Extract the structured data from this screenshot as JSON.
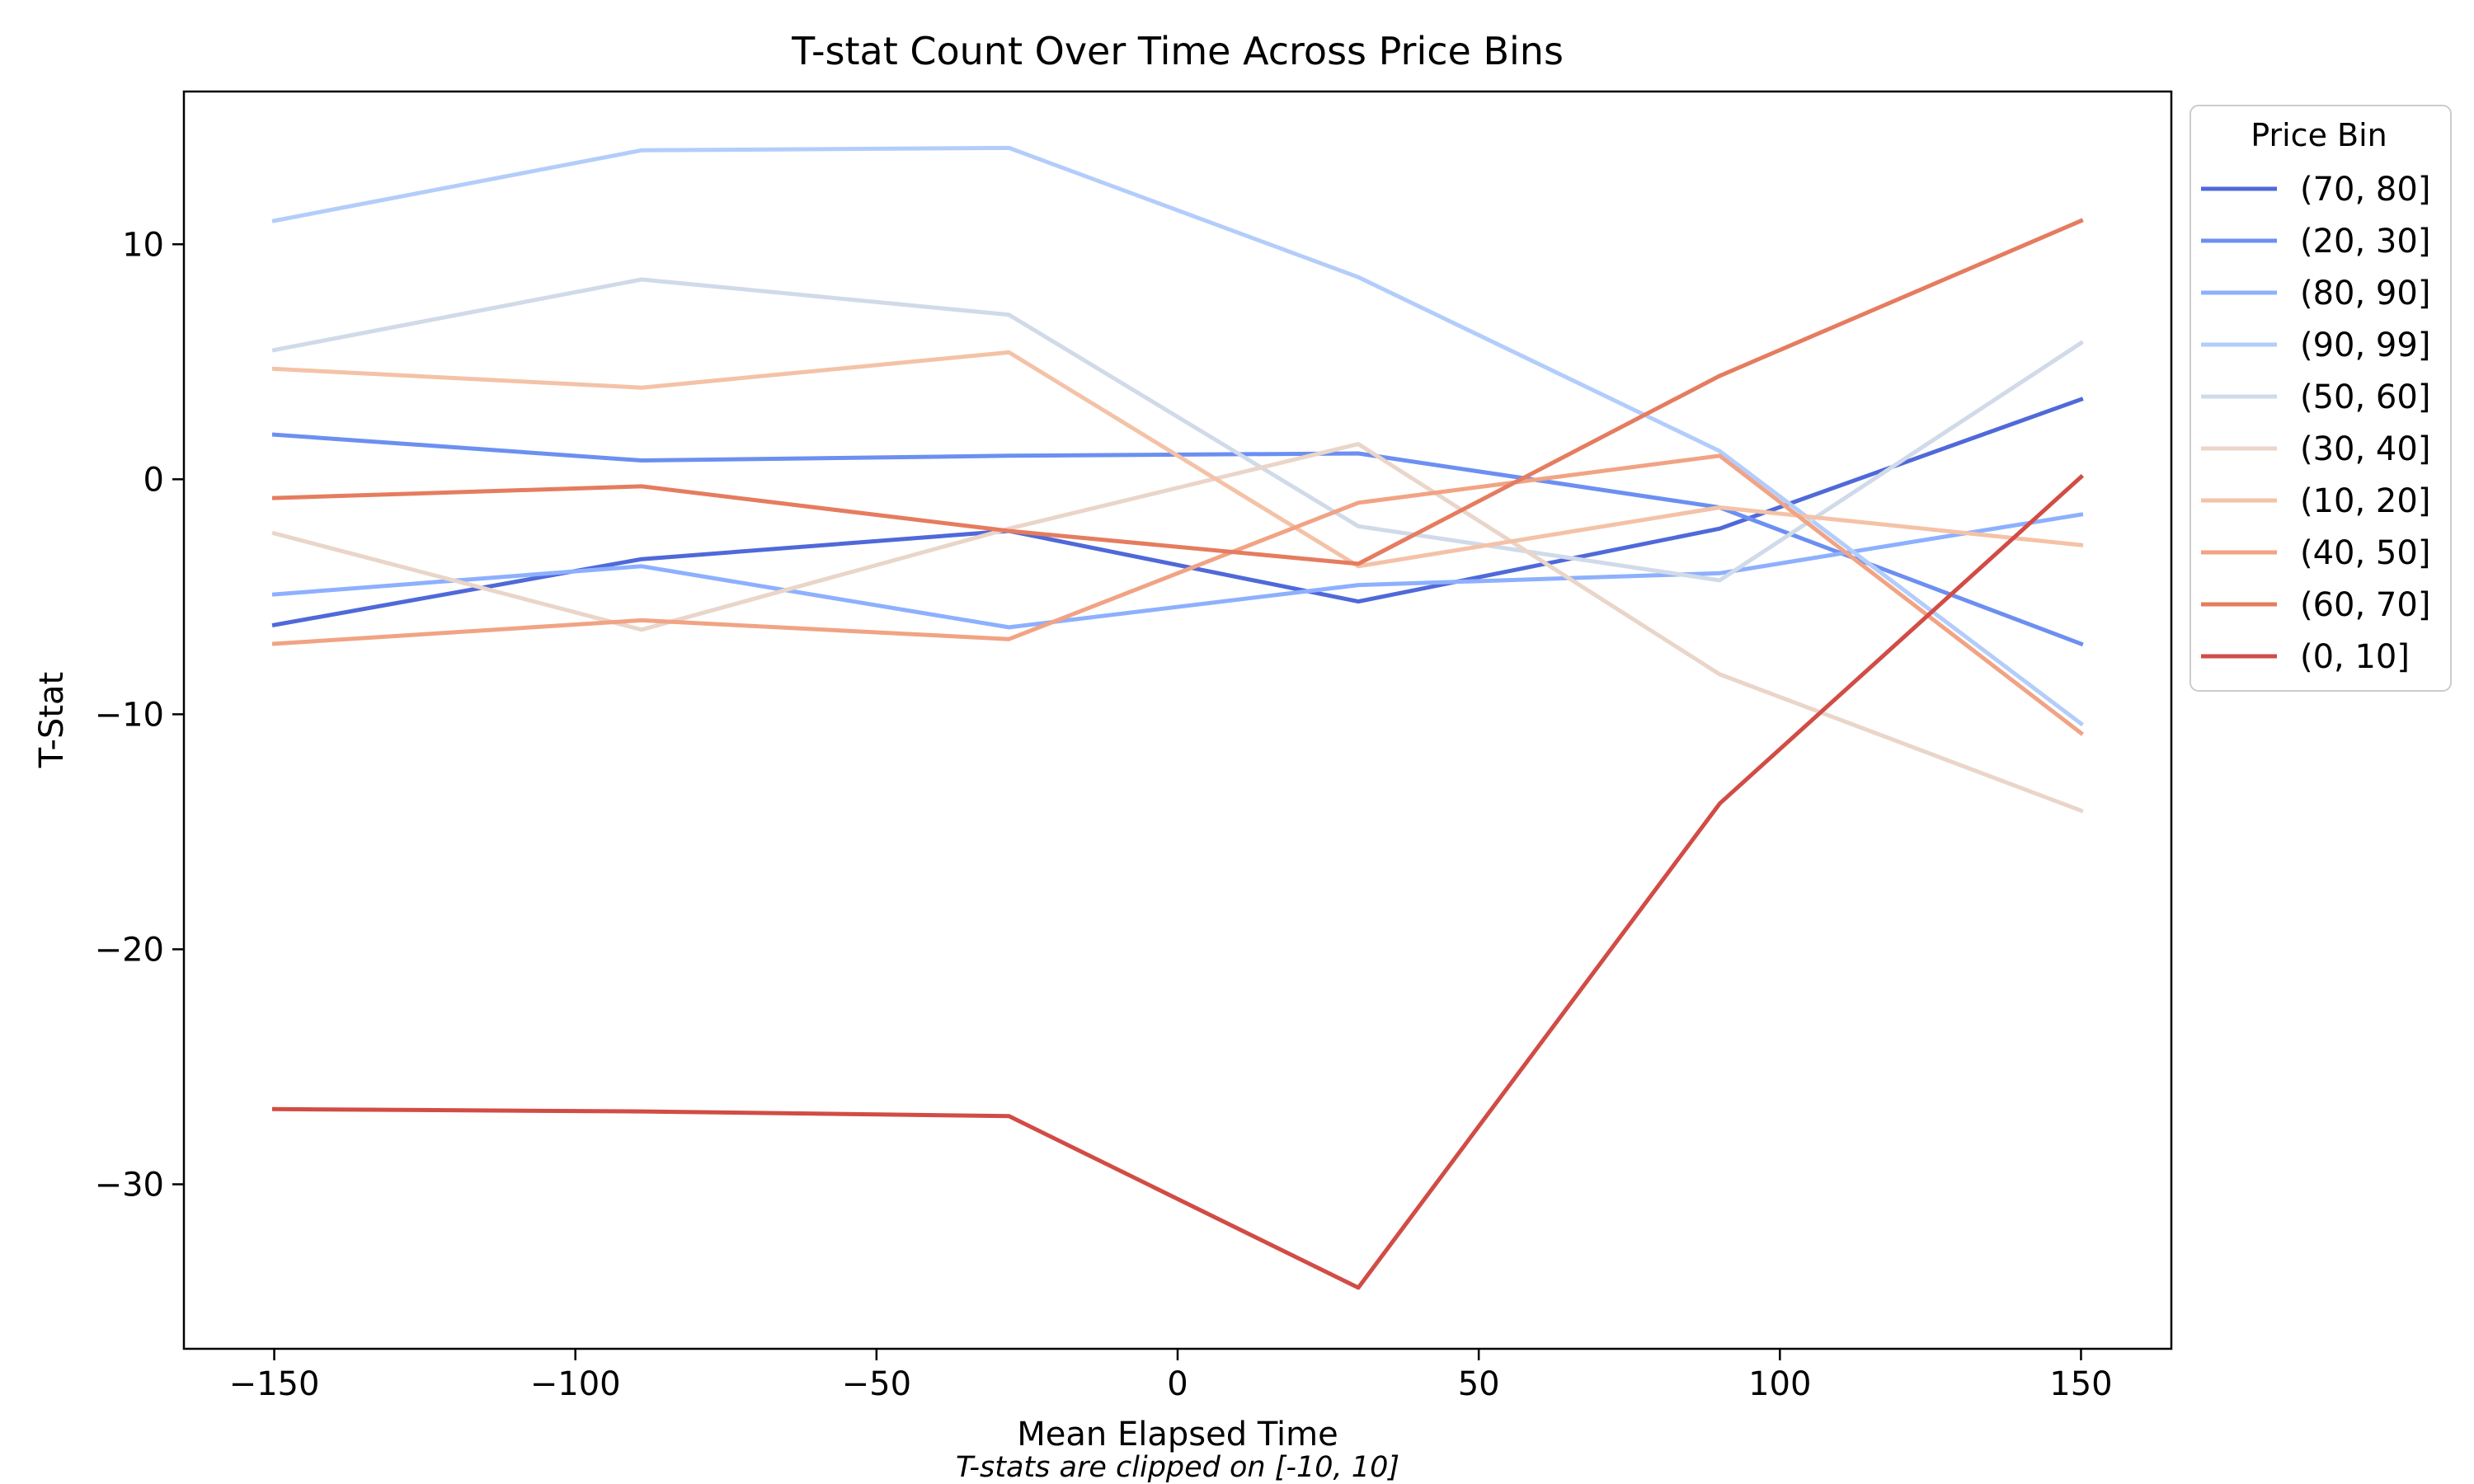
{
  "chart_data": {
    "type": "line",
    "title": "T-stat Count Over Time Across Price Bins",
    "xlabel": "Mean Elapsed Time",
    "ylabel": "T-Stat",
    "footnote": "T-stats are clipped on [-10, 10]",
    "xlim": [
      -165,
      165
    ],
    "ylim": [
      -37,
      16.5
    ],
    "xticks": [
      -150,
      -100,
      -50,
      0,
      50,
      100,
      150
    ],
    "yticks": [
      10,
      0,
      -10,
      -20,
      -30
    ],
    "tick_labels": {
      "x": [
        "−150",
        "−100",
        "−50",
        "0",
        "50",
        "100",
        "150"
      ],
      "y": [
        "10",
        "0",
        "−10",
        "−20",
        "−30"
      ]
    },
    "grid": false,
    "legend": {
      "title": "Price Bin",
      "position": "outside-right-top"
    },
    "series": [
      {
        "name": "(70, 80]",
        "color": "#4f69d9",
        "x": [
          -150,
          -89,
          -28,
          30,
          90,
          150
        ],
        "y": [
          -6.2,
          -3.4,
          -2.2,
          -5.2,
          -2.1,
          3.4
        ]
      },
      {
        "name": "(20, 30]",
        "color": "#6c8ff1",
        "x": [
          -150,
          -89,
          -28,
          30,
          90,
          150
        ],
        "y": [
          1.9,
          0.8,
          1.0,
          1.1,
          -1.2,
          -7.0
        ]
      },
      {
        "name": "(80, 90]",
        "color": "#8db0fe",
        "x": [
          -150,
          -89,
          -28,
          30,
          90,
          150
        ],
        "y": [
          -4.9,
          -3.7,
          -6.3,
          -4.5,
          -4.0,
          -1.5
        ]
      },
      {
        "name": "(90, 99]",
        "color": "#b3cdfb",
        "x": [
          -150,
          -89,
          -28,
          30,
          90,
          150
        ],
        "y": [
          11.0,
          14.0,
          14.1,
          8.6,
          1.2,
          -10.4
        ]
      },
      {
        "name": "(50, 60]",
        "color": "#d0dae9",
        "x": [
          -150,
          -89,
          -28,
          30,
          90,
          150
        ],
        "y": [
          5.5,
          8.5,
          7.0,
          -2.0,
          -4.3,
          5.8
        ]
      },
      {
        "name": "(30, 40]",
        "color": "#ead5c9",
        "x": [
          -150,
          -89,
          -28,
          30,
          90,
          150
        ],
        "y": [
          -2.3,
          -6.4,
          -2.1,
          1.5,
          -8.3,
          -14.1
        ]
      },
      {
        "name": "(10, 20]",
        "color": "#f4c2a7",
        "x": [
          -150,
          -89,
          -28,
          30,
          90,
          150
        ],
        "y": [
          4.7,
          3.9,
          5.4,
          -3.7,
          -1.2,
          -2.8
        ]
      },
      {
        "name": "(40, 50]",
        "color": "#f1a384",
        "x": [
          -150,
          -89,
          -28,
          30,
          90,
          150
        ],
        "y": [
          -7.0,
          -6.0,
          -6.8,
          -1.0,
          1.0,
          -10.8
        ]
      },
      {
        "name": "(60, 70]",
        "color": "#e57c5f",
        "x": [
          -150,
          -89,
          -28,
          30,
          90,
          150
        ],
        "y": [
          -0.8,
          -0.3,
          -2.2,
          -3.6,
          4.4,
          11.0
        ]
      },
      {
        "name": "(0, 10]",
        "color": "#d14c45",
        "x": [
          -150,
          -89,
          -28,
          30,
          90,
          150
        ],
        "y": [
          -26.8,
          -26.9,
          -27.1,
          -34.4,
          -13.8,
          0.1
        ]
      }
    ]
  }
}
